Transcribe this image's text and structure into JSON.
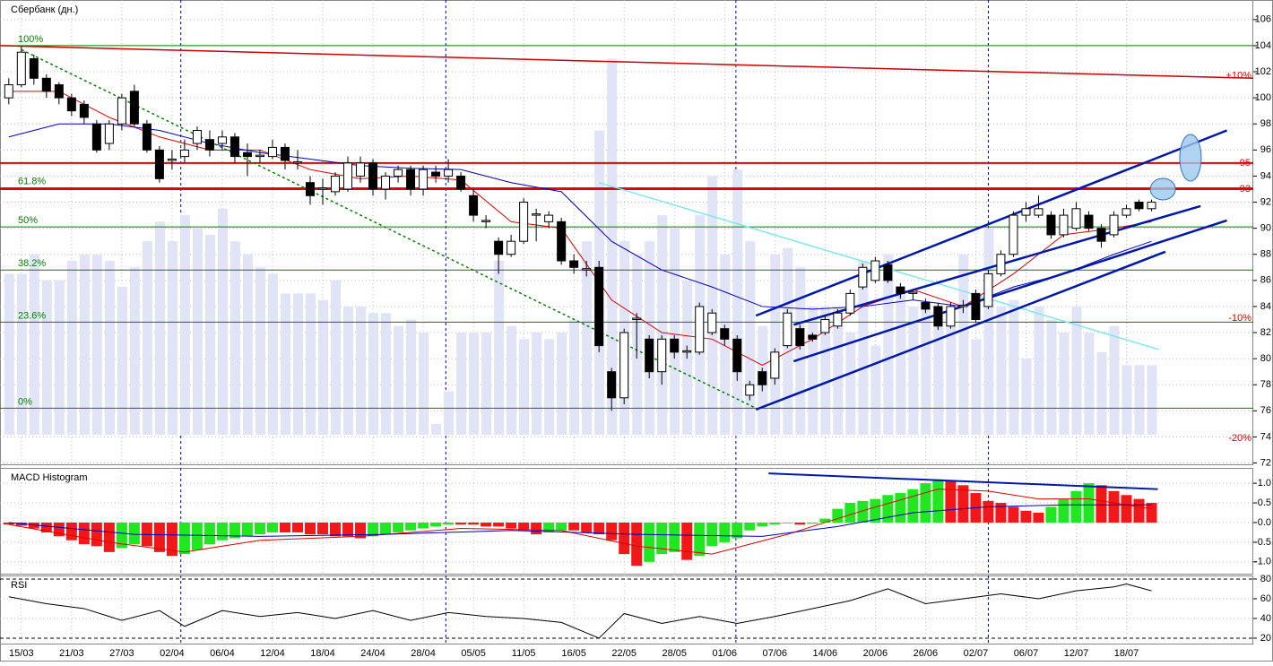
{
  "chart_data": [
    {
      "type": "candlestick",
      "title": "Сбербанк (дн.)",
      "categories": [
        null,
        "15/03",
        null,
        null,
        null,
        "21/03",
        null,
        null,
        null,
        "27/03",
        null,
        null,
        null,
        "02/04",
        null,
        null,
        null,
        "06/04",
        null,
        null,
        null,
        "12/04",
        null,
        null,
        null,
        "18/04",
        null,
        null,
        null,
        "24/04",
        null,
        null,
        null,
        "28/04",
        null,
        null,
        null,
        "05/05",
        null,
        null,
        null,
        "11/05",
        null,
        null,
        null,
        "16/05",
        null,
        null,
        null,
        "22/05",
        null,
        null,
        null,
        "28/05",
        null,
        null,
        null,
        "01/06",
        null,
        null,
        null,
        "07/06",
        null,
        null,
        null,
        "14/06",
        null,
        null,
        null,
        "20/06",
        null,
        null,
        null,
        "26/06",
        null,
        null,
        null,
        "02/07",
        null,
        null,
        null,
        "06/07",
        null,
        null,
        null,
        "12/07",
        null,
        null,
        null,
        "18/07",
        null,
        null
      ],
      "open": [
        100,
        101,
        103,
        101.5,
        101,
        100,
        99.5,
        98,
        96.5,
        98,
        100.5,
        98,
        96,
        95.2,
        95.5,
        96.5,
        96.8,
        96.5,
        97,
        95.8,
        95.5,
        95.5,
        96.2,
        95,
        93.5,
        93,
        92.8,
        93,
        94,
        95,
        93,
        94,
        94.5,
        93,
        94.3,
        94,
        94,
        92.5,
        90.5,
        89,
        88,
        89,
        91,
        90.5,
        90.5,
        87.5,
        86.8,
        87,
        79,
        77,
        83,
        81.5,
        79,
        81.5,
        80.5,
        80.5,
        82,
        82.3,
        81.5,
        77.2,
        79,
        78.5,
        81,
        82.3,
        81.8,
        82,
        82.5,
        83.5,
        85.5,
        86,
        87.2,
        85.5,
        85,
        84.3,
        84,
        82.5,
        84,
        85,
        84,
        86.5,
        88,
        91,
        91,
        91,
        89.5,
        90,
        91,
        90,
        89.5,
        91,
        92,
        91.5
      ],
      "high": [
        101.5,
        104,
        103.3,
        101.8,
        101.2,
        100.3,
        99.8,
        98.3,
        98.3,
        100.3,
        101,
        98.3,
        96.3,
        96,
        96.8,
        97.8,
        97.5,
        97.5,
        97.3,
        96.5,
        96,
        96.8,
        96.5,
        96,
        94,
        93.8,
        94.3,
        95.5,
        95.5,
        95.3,
        94.3,
        94.8,
        94.8,
        94.8,
        94.8,
        95.3,
        94.3,
        93,
        91,
        89.3,
        89.5,
        92.3,
        91.5,
        91.3,
        90.8,
        88,
        87.5,
        87.5,
        79.3,
        82.3,
        83.5,
        81.8,
        81.8,
        81.8,
        81,
        84.3,
        83.8,
        82.6,
        81.8,
        78.3,
        79.3,
        80.8,
        83.8,
        82.6,
        82,
        83.3,
        83.8,
        85.3,
        87.3,
        87.8,
        87.5,
        85.8,
        85.3,
        84.6,
        84.3,
        84.3,
        84.5,
        85.3,
        86.8,
        88.3,
        91.3,
        92,
        92.5,
        91.3,
        91.5,
        92,
        91.3,
        90.3,
        91.3,
        91.8,
        92.2,
        92.2
      ],
      "low": [
        99.5,
        100.8,
        101,
        100,
        99.5,
        98.6,
        98,
        95.8,
        96,
        97.5,
        97.8,
        95.8,
        93.5,
        94.5,
        95,
        96,
        95.5,
        96,
        95,
        94,
        95,
        95.3,
        94.5,
        94.5,
        91.8,
        91.8,
        92.5,
        92.8,
        93.5,
        92.5,
        92.2,
        93.5,
        92.5,
        92.5,
        93.5,
        93.5,
        92.8,
        90.5,
        90,
        86.5,
        87.8,
        88.8,
        89,
        90,
        87.2,
        86.5,
        86.3,
        80.5,
        76,
        76.5,
        80,
        78.5,
        78,
        80,
        80,
        80.3,
        81.8,
        81,
        78.3,
        76.8,
        77.5,
        78,
        80.8,
        80.7,
        81.3,
        81.8,
        82.3,
        83.3,
        85.3,
        85.8,
        85.8,
        84.6,
        84.5,
        83.5,
        82.2,
        82.3,
        83.5,
        82.8,
        83.8,
        86.3,
        87.8,
        90.5,
        90.8,
        89.2,
        89.3,
        89.8,
        89.8,
        88.5,
        89.3,
        90.8,
        91.3,
        91.3
      ],
      "close": [
        101,
        103.5,
        101.5,
        100.5,
        100,
        99,
        98.5,
        96,
        98,
        100,
        98,
        96,
        93.8,
        95.3,
        96,
        97.5,
        96,
        97,
        95.5,
        95.5,
        95.6,
        96.2,
        95.2,
        95.1,
        92.5,
        93.1,
        94,
        95,
        95,
        93,
        94,
        94.5,
        93,
        94.5,
        94,
        94.5,
        93,
        91,
        90.6,
        88,
        89,
        92,
        91.1,
        91,
        87.5,
        87,
        86.9,
        81,
        77,
        82,
        83.1,
        79,
        81.5,
        80.5,
        80.6,
        84,
        83.5,
        81.5,
        79,
        78,
        78,
        80.5,
        83.5,
        81,
        81.5,
        83,
        83.5,
        85,
        87,
        87.5,
        86,
        85,
        85.1,
        83.8,
        82.5,
        84,
        84.1,
        83,
        86.5,
        88,
        91,
        91.5,
        91.5,
        89.5,
        91,
        91.5,
        90,
        89,
        91,
        91.5,
        91.5,
        92
      ],
      "volume": [
        86.5,
        86.5,
        88,
        86,
        86,
        87.5,
        88,
        88,
        87.5,
        85.5,
        87,
        89,
        90.5,
        89,
        91,
        90,
        89.5,
        91.5,
        89,
        88,
        87,
        86.5,
        85,
        85,
        85,
        84.5,
        86,
        84,
        84,
        83.5,
        83.5,
        82.5,
        83,
        82,
        75,
        77.5,
        82,
        82,
        82,
        87.5,
        82.5,
        81.5,
        82,
        81.5,
        82,
        83,
        89,
        97.5,
        103,
        89,
        88,
        89,
        91,
        90,
        86,
        91,
        94,
        88,
        94.5,
        89,
        82.5,
        88,
        88.5,
        87,
        84,
        84,
        84,
        82,
        87.5,
        81,
        88,
        85.5,
        84,
        84,
        84,
        82.5,
        88,
        81.5,
        90,
        84,
        84.5,
        80,
        84,
        83,
        82,
        84,
        82,
        80.5,
        82.5,
        79.5,
        79.5,
        79.5
      ],
      "volume_color": "#e1e3f7",
      "up_color": "#ffffff",
      "down_color": "#000000",
      "xlim": [
        -0.7,
        99.1
      ],
      "ylim": [
        71.9,
        107.5
      ],
      "yticks": [
        72,
        74,
        76,
        78,
        80,
        82,
        84,
        86,
        88,
        90,
        92,
        94,
        96,
        98,
        100,
        102,
        104,
        106
      ],
      "month_lines": [
        13.7,
        34.8,
        57.9,
        78
      ],
      "moving_averages": [
        {
          "color": "#e00000",
          "x": [
            0,
            4,
            8,
            12,
            16,
            20,
            24,
            28,
            32,
            36,
            40,
            44,
            48,
            52,
            56,
            60,
            64,
            68,
            72,
            76,
            80,
            84,
            88,
            91
          ],
          "values": [
            100.5,
            100.5,
            98.5,
            97,
            96,
            96,
            94.5,
            93.8,
            94,
            93.7,
            90.5,
            90,
            84.5,
            82,
            81.5,
            79.5,
            81.5,
            84,
            85.3,
            84,
            86.5,
            89.5,
            90,
            90.5
          ]
        },
        {
          "color": "#0000c0",
          "x": [
            0,
            4,
            8,
            12,
            16,
            20,
            24,
            28,
            32,
            36,
            40,
            44,
            48,
            52,
            56,
            60,
            64,
            68,
            72,
            76,
            80,
            84,
            88,
            91
          ],
          "values": [
            97,
            98,
            98,
            97.5,
            96.5,
            95.8,
            95.3,
            94.8,
            94.6,
            94.5,
            93.5,
            92.8,
            89,
            86.8,
            85.5,
            84,
            83.8,
            84,
            84.5,
            84,
            85.5,
            86.5,
            88,
            89
          ]
        }
      ],
      "levels": [
        {
          "label": "100%",
          "value": 104
        },
        {
          "label": "61.8%",
          "value": 93.1
        },
        {
          "label": "50%",
          "value": 90.1
        },
        {
          "label": "38.2%",
          "value": 86.8
        },
        {
          "label": "23.6%",
          "value": 82.8
        },
        {
          "label": "0%",
          "value": 76.2
        }
      ],
      "level_color": "#008000",
      "red_levels": [
        {
          "label": "95",
          "value": 95
        },
        {
          "label": "93",
          "value": 93
        }
      ],
      "red_color": "#e00000",
      "percent_labels": [
        {
          "label": "+10%",
          "value": 101.7
        },
        {
          "label": "-10%",
          "value": 83.1
        },
        {
          "label": "-20%",
          "value": 73.9
        }
      ],
      "trend_lines": [
        {
          "color": "#cc0000",
          "x": [
            -0.7,
            99.1
          ],
          "values": [
            104,
            101.5
          ]
        },
        {
          "color": "#008000",
          "dashed": true,
          "x": [
            1,
            59.5
          ],
          "values": [
            103.7,
            76.2
          ]
        },
        {
          "color": "#80e8e8",
          "x": [
            47,
            91.6
          ],
          "values": [
            93.5,
            80.7
          ]
        },
        {
          "color": "#0018a8",
          "x": [
            59.5,
            97
          ],
          "values": [
            83.3,
            97.5
          ]
        },
        {
          "color": "#0018a8",
          "x": [
            62.5,
            94.9
          ],
          "values": [
            82.6,
            91.7
          ]
        },
        {
          "color": "#0018a8",
          "x": [
            62.5,
            97
          ],
          "values": [
            79.8,
            90.6
          ]
        },
        {
          "color": "#0018a8",
          "x": [
            59.5,
            92.1
          ],
          "values": [
            76.1,
            88.2
          ]
        }
      ],
      "highlights": [
        {
          "x": 94.1,
          "value": 95.4
        },
        {
          "x": 91.9,
          "value": 93
        }
      ]
    },
    {
      "type": "bar",
      "title": "MACD Histogram",
      "values": [
        -0.05,
        -0.08,
        -0.15,
        -0.25,
        -0.35,
        -0.45,
        -0.55,
        -0.6,
        -0.75,
        -0.65,
        -0.55,
        -0.6,
        -0.75,
        -0.85,
        -0.8,
        -0.7,
        -0.55,
        -0.45,
        -0.4,
        -0.35,
        -0.3,
        -0.25,
        -0.25,
        -0.25,
        -0.3,
        -0.3,
        -0.35,
        -0.35,
        -0.4,
        -0.35,
        -0.3,
        -0.25,
        -0.2,
        -0.15,
        -0.1,
        -0.05,
        -0.05,
        -0.05,
        -0.1,
        -0.1,
        -0.15,
        -0.2,
        -0.3,
        -0.25,
        -0.2,
        -0.2,
        -0.25,
        -0.3,
        -0.45,
        -0.8,
        -1.1,
        -1.0,
        -0.8,
        -0.75,
        -0.95,
        -0.85,
        -0.6,
        -0.5,
        -0.4,
        -0.2,
        -0.1,
        -0.05,
        -0.02,
        -0.05,
        -0.03,
        0.1,
        0.35,
        0.5,
        0.55,
        0.6,
        0.7,
        0.75,
        0.85,
        1.0,
        1.1,
        1.05,
        0.95,
        0.75,
        0.55,
        0.5,
        0.4,
        0.3,
        0.25,
        0.4,
        0.6,
        0.8,
        1.0,
        0.95,
        0.8,
        0.7,
        0.6,
        0.5
      ],
      "rising_color": "#22e622",
      "falling_color": "#f01818",
      "ylim": [
        -1.3,
        1.39
      ],
      "yticks": [
        {
          "value": 1,
          "label": "1.0"
        },
        {
          "value": 0.5,
          "label": "0.5"
        },
        {
          "value": 0,
          "label": "0.0"
        },
        {
          "value": -0.5,
          "label": "-0.5"
        },
        {
          "value": -1,
          "label": "-1.0"
        }
      ],
      "lines": [
        {
          "color": "#e00000",
          "x": [
            0,
            8,
            14,
            20,
            28,
            36,
            44,
            50,
            56,
            62,
            68,
            74,
            78,
            82,
            86,
            91
          ],
          "values": [
            -0.05,
            -0.5,
            -0.75,
            -0.45,
            -0.35,
            -0.15,
            -0.2,
            -0.6,
            -0.8,
            -0.3,
            0.3,
            0.85,
            0.8,
            0.6,
            0.6,
            0.35
          ]
        },
        {
          "color": "#0000c0",
          "x": [
            0,
            10,
            20,
            30,
            40,
            50,
            60,
            66,
            72,
            78,
            84,
            91
          ],
          "values": [
            0,
            -0.3,
            -0.35,
            -0.3,
            -0.2,
            -0.3,
            -0.35,
            -0.1,
            0.25,
            0.4,
            0.45,
            0.45
          ]
        },
        {
          "color": "#0018a8",
          "x": [
            60.5,
            91.5
          ],
          "values": [
            1.25,
            0.85
          ]
        }
      ]
    },
    {
      "type": "line",
      "title": "RSI",
      "color": "#000000",
      "x": [
        0,
        3,
        6,
        9,
        12,
        14,
        17,
        20,
        23,
        26,
        29,
        32,
        35,
        38,
        41,
        44,
        47,
        49,
        52,
        55,
        58,
        61,
        64,
        67,
        70,
        73,
        76,
        79,
        82,
        85,
        88,
        89,
        91
      ],
      "values": [
        62,
        55,
        50,
        38,
        48,
        32,
        48,
        42,
        46,
        40,
        48,
        38,
        46,
        42,
        40,
        36,
        20,
        45,
        35,
        42,
        35,
        42,
        50,
        58,
        70,
        55,
        60,
        65,
        60,
        68,
        72,
        75,
        68
      ],
      "ylim": [
        14.5,
        83.6
      ],
      "yticks": [
        80,
        60,
        40,
        20
      ],
      "dashed_ticks": [
        80,
        20
      ]
    }
  ]
}
